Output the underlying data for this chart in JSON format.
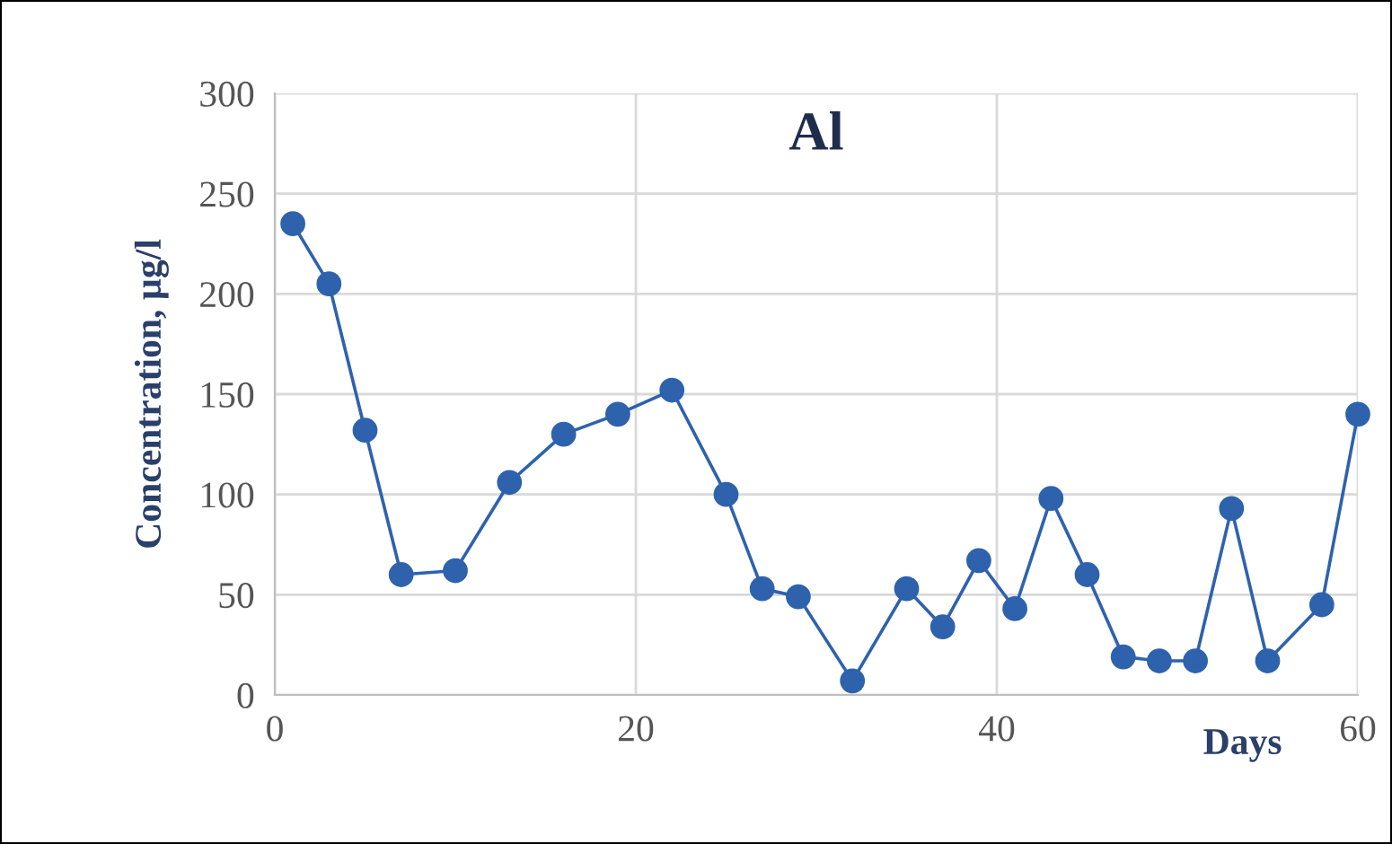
{
  "chart_data": {
    "type": "line",
    "title": "Al",
    "xlabel": "Days",
    "ylabel": "Concentration, µg/l",
    "x": [
      1,
      3,
      5,
      7,
      10,
      13,
      16,
      19,
      22,
      25,
      27,
      29,
      32,
      35,
      37,
      39,
      41,
      43,
      45,
      47,
      49,
      51,
      53,
      55,
      58,
      60
    ],
    "series": [
      {
        "color": "#2e62ad",
        "values": [
          235,
          205,
          132,
          60,
          62,
          106,
          130,
          140,
          152,
          100,
          53,
          49,
          7,
          53,
          34,
          67,
          43,
          98,
          60,
          19,
          17,
          17,
          93,
          17,
          45,
          140
        ]
      }
    ],
    "xlim": [
      0,
      60
    ],
    "xticks": [
      0,
      20,
      40,
      60
    ],
    "ylim": [
      0,
      300
    ],
    "yticks": [
      0,
      50,
      100,
      150,
      200,
      250,
      300
    ],
    "grid": true,
    "marker": "circle",
    "line_style": "solid"
  }
}
